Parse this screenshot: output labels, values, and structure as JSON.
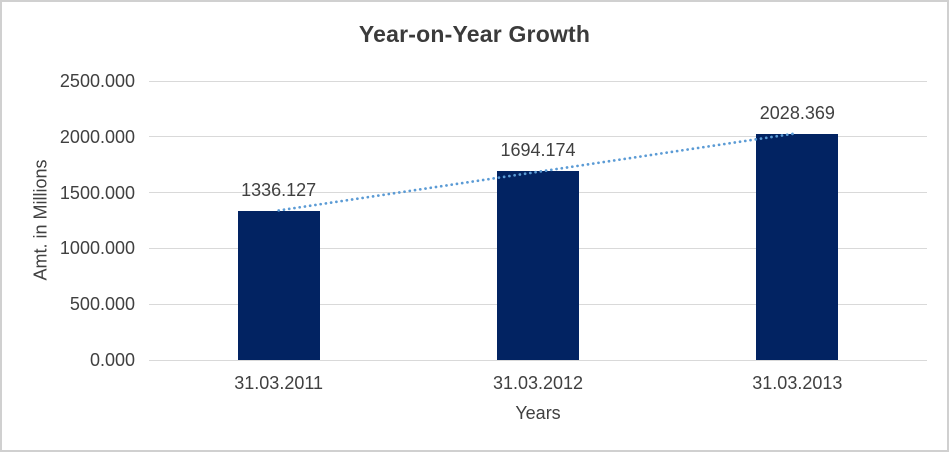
{
  "chart_data": {
    "type": "bar",
    "title": "Year-on-Year Growth",
    "categories": [
      "31.03.2011",
      "31.03.2012",
      "31.03.2013"
    ],
    "values": [
      1336.127,
      1694.174,
      2028.369
    ],
    "data_labels": [
      "1336.127",
      "1694.174",
      "2028.369"
    ],
    "xlabel": "Years",
    "ylabel": "Amt. in Millions",
    "ylim": [
      0,
      2500
    ],
    "yticks": [
      0,
      500,
      1000,
      1500,
      2000,
      2500
    ],
    "ytick_labels": [
      "0.000",
      "500.000",
      "1000.000",
      "1500.000",
      "2000.000",
      "2500.000"
    ],
    "grid": true,
    "legend": false,
    "trendline": {
      "kind": "linear",
      "style": "dotted"
    },
    "colors": {
      "bar": "#022362",
      "trendline": "#5b9bd5",
      "gridline": "#d9d9d9",
      "text": "#404040",
      "title_text": "#3b3b3b",
      "chart_border": "#d0d0d0",
      "background": "#ffffff"
    }
  }
}
